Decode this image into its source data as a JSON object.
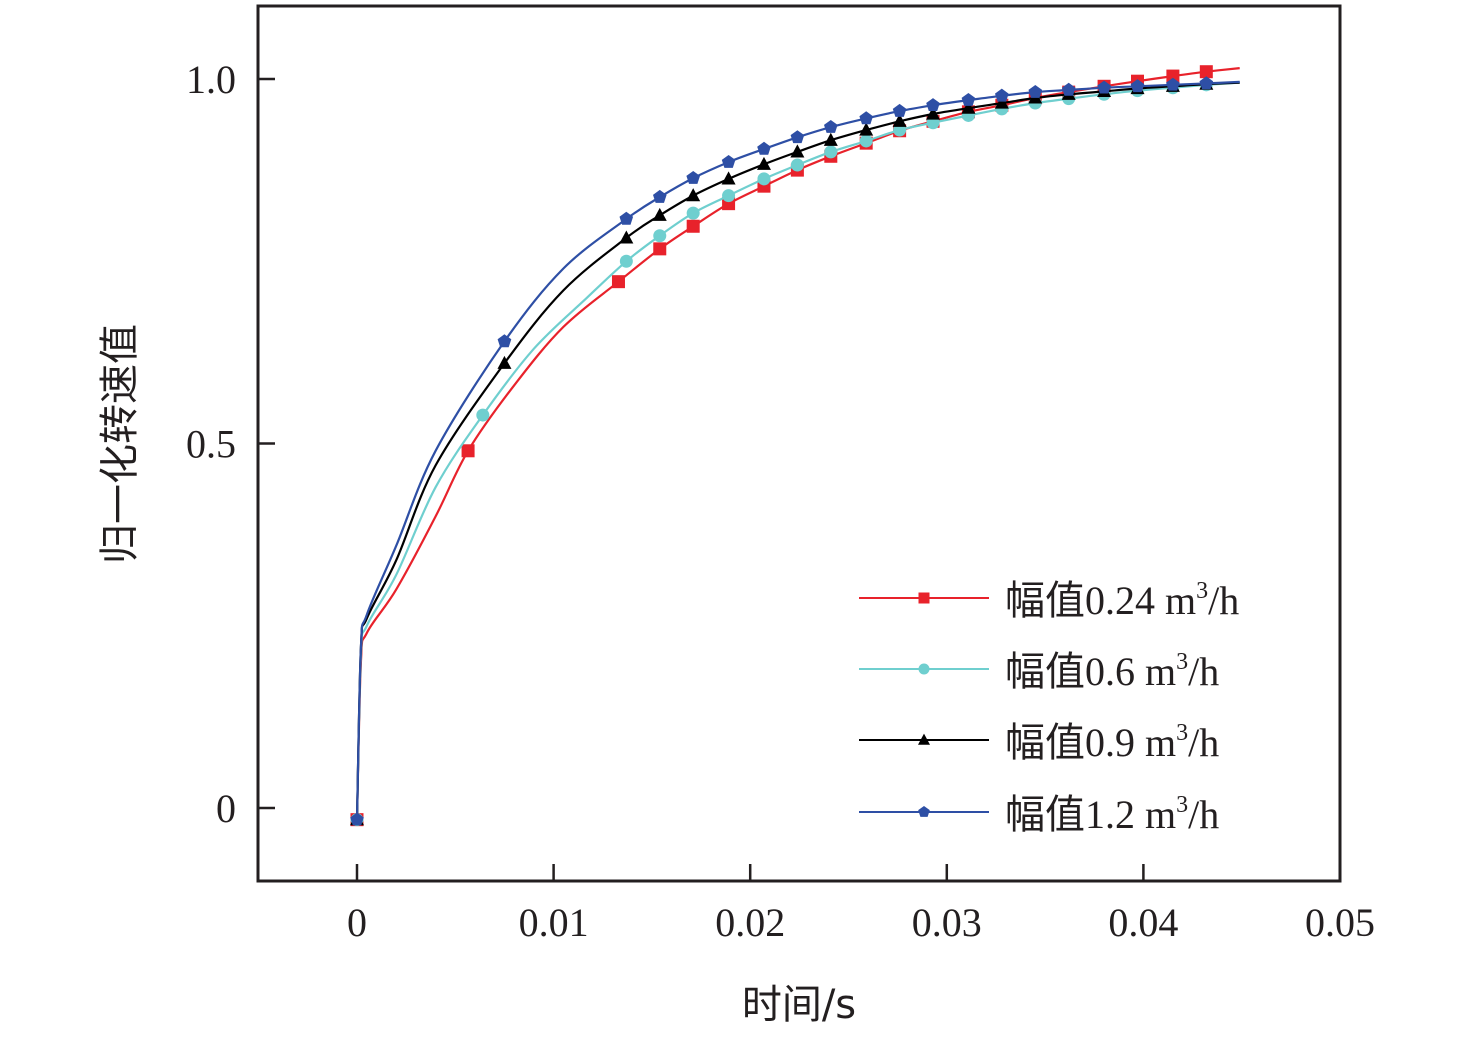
{
  "chart_data": {
    "type": "line",
    "title": "",
    "xlabel": "时间/s",
    "ylabel": "归一化转速值",
    "xlim": [
      -0.005,
      0.05
    ],
    "ylim": [
      -0.1,
      1.1
    ],
    "xticks": [
      0,
      0.01,
      0.02,
      0.03,
      0.04,
      0.05
    ],
    "xtick_labels": [
      "0",
      "0.01",
      "0.02",
      "0.03",
      "0.04",
      "0.05"
    ],
    "yticks": [
      0,
      0.5,
      1.0
    ],
    "ytick_labels": [
      "0",
      "0.5",
      "1.0"
    ],
    "grid": false,
    "legend_position": "bottom-right",
    "series": [
      {
        "name": "幅值0.24 m³/h",
        "label_prefix": "幅值0.24 m",
        "label_sup": "3",
        "label_suffix": "/h",
        "color": "#e8222b",
        "marker": "square",
        "curve": [
          [
            0,
            -0.016
          ],
          [
            0.0002,
            0.2
          ],
          [
            0.0005,
            0.24
          ],
          [
            0.002,
            0.3
          ],
          [
            0.004,
            0.4
          ],
          [
            0.00565,
            0.49
          ],
          [
            0.008,
            0.58
          ],
          [
            0.0105,
            0.66
          ],
          [
            0.0133,
            0.722
          ],
          [
            0.0154,
            0.767
          ],
          [
            0.0171,
            0.798
          ],
          [
            0.0189,
            0.829
          ],
          [
            0.0207,
            0.853
          ],
          [
            0.0224,
            0.875
          ],
          [
            0.0241,
            0.894
          ],
          [
            0.0259,
            0.912
          ],
          [
            0.0276,
            0.929
          ],
          [
            0.0293,
            0.942
          ],
          [
            0.0311,
            0.955
          ],
          [
            0.0328,
            0.964
          ],
          [
            0.0345,
            0.974
          ],
          [
            0.0362,
            0.982
          ],
          [
            0.038,
            0.99
          ],
          [
            0.0397,
            0.997
          ],
          [
            0.0415,
            1.004
          ],
          [
            0.0432,
            1.01
          ],
          [
            0.0449,
            1.015
          ]
        ],
        "markers": [
          [
            0,
            -0.016
          ],
          [
            0.00565,
            0.49
          ],
          [
            0.0133,
            0.722
          ],
          [
            0.0154,
            0.767
          ],
          [
            0.0171,
            0.798
          ],
          [
            0.0189,
            0.829
          ],
          [
            0.0207,
            0.853
          ],
          [
            0.0224,
            0.875
          ],
          [
            0.0241,
            0.894
          ],
          [
            0.0259,
            0.912
          ],
          [
            0.0276,
            0.929
          ],
          [
            0.0293,
            0.942
          ],
          [
            0.0311,
            0.955
          ],
          [
            0.0328,
            0.964
          ],
          [
            0.0345,
            0.974
          ],
          [
            0.0362,
            0.982
          ],
          [
            0.038,
            0.99
          ],
          [
            0.0397,
            0.997
          ],
          [
            0.0415,
            1.004
          ],
          [
            0.0432,
            1.01
          ]
        ]
      },
      {
        "name": "幅值0.6 m³/h",
        "label_prefix": "幅值0.6 m",
        "label_sup": "3",
        "label_suffix": "/h",
        "color": "#6fcfcf",
        "marker": "circle",
        "curve": [
          [
            0,
            -0.016
          ],
          [
            0.0002,
            0.21
          ],
          [
            0.0005,
            0.25
          ],
          [
            0.002,
            0.32
          ],
          [
            0.004,
            0.44
          ],
          [
            0.0064,
            0.539
          ],
          [
            0.009,
            0.63
          ],
          [
            0.0117,
            0.7
          ],
          [
            0.0137,
            0.75
          ],
          [
            0.0154,
            0.785
          ],
          [
            0.0171,
            0.816
          ],
          [
            0.0189,
            0.84
          ],
          [
            0.0207,
            0.863
          ],
          [
            0.0224,
            0.882
          ],
          [
            0.0241,
            0.9
          ],
          [
            0.0259,
            0.915
          ],
          [
            0.0276,
            0.93
          ],
          [
            0.0293,
            0.94
          ],
          [
            0.0311,
            0.95
          ],
          [
            0.0328,
            0.959
          ],
          [
            0.0345,
            0.967
          ],
          [
            0.0362,
            0.973
          ],
          [
            0.038,
            0.979
          ],
          [
            0.0397,
            0.984
          ],
          [
            0.0415,
            0.988
          ],
          [
            0.0432,
            0.992
          ],
          [
            0.0449,
            0.995
          ]
        ],
        "markers": [
          [
            0,
            -0.016
          ],
          [
            0.0064,
            0.539
          ],
          [
            0.0137,
            0.75
          ],
          [
            0.0154,
            0.785
          ],
          [
            0.0171,
            0.816
          ],
          [
            0.0189,
            0.84
          ],
          [
            0.0207,
            0.863
          ],
          [
            0.0224,
            0.882
          ],
          [
            0.0241,
            0.9
          ],
          [
            0.0259,
            0.915
          ],
          [
            0.0276,
            0.93
          ],
          [
            0.0293,
            0.94
          ],
          [
            0.0311,
            0.95
          ],
          [
            0.0328,
            0.959
          ],
          [
            0.0345,
            0.967
          ],
          [
            0.0362,
            0.973
          ],
          [
            0.038,
            0.979
          ],
          [
            0.0397,
            0.984
          ],
          [
            0.0415,
            0.988
          ],
          [
            0.0432,
            0.992
          ]
        ]
      },
      {
        "name": "幅值0.9 m³/h",
        "label_prefix": "幅值0.9 m",
        "label_sup": "3",
        "label_suffix": "/h",
        "color": "#000000",
        "marker": "triangle",
        "curve": [
          [
            0,
            -0.016
          ],
          [
            0.0002,
            0.22
          ],
          [
            0.0005,
            0.26
          ],
          [
            0.002,
            0.34
          ],
          [
            0.004,
            0.47
          ],
          [
            0.0075,
            0.61
          ],
          [
            0.0105,
            0.71
          ],
          [
            0.0137,
            0.782
          ],
          [
            0.0154,
            0.813
          ],
          [
            0.0171,
            0.84
          ],
          [
            0.0189,
            0.863
          ],
          [
            0.0207,
            0.883
          ],
          [
            0.0224,
            0.9
          ],
          [
            0.0241,
            0.916
          ],
          [
            0.0259,
            0.93
          ],
          [
            0.0276,
            0.942
          ],
          [
            0.0293,
            0.952
          ],
          [
            0.0311,
            0.96
          ],
          [
            0.0328,
            0.967
          ],
          [
            0.0345,
            0.974
          ],
          [
            0.0362,
            0.979
          ],
          [
            0.038,
            0.983
          ],
          [
            0.0397,
            0.987
          ],
          [
            0.0415,
            0.99
          ],
          [
            0.0432,
            0.993
          ],
          [
            0.0449,
            0.995
          ]
        ],
        "markers": [
          [
            0,
            -0.016
          ],
          [
            0.0075,
            0.61
          ],
          [
            0.0137,
            0.782
          ],
          [
            0.0154,
            0.813
          ],
          [
            0.0171,
            0.84
          ],
          [
            0.0189,
            0.863
          ],
          [
            0.0207,
            0.883
          ],
          [
            0.0224,
            0.9
          ],
          [
            0.0241,
            0.916
          ],
          [
            0.0259,
            0.93
          ],
          [
            0.0276,
            0.942
          ],
          [
            0.0293,
            0.952
          ],
          [
            0.0311,
            0.96
          ],
          [
            0.0328,
            0.967
          ],
          [
            0.0345,
            0.974
          ],
          [
            0.0362,
            0.979
          ],
          [
            0.038,
            0.983
          ],
          [
            0.0397,
            0.987
          ],
          [
            0.0415,
            0.99
          ],
          [
            0.0432,
            0.993
          ]
        ]
      },
      {
        "name": "幅值1.2 m³/h",
        "label_prefix": "幅值1.2 m",
        "label_sup": "3",
        "label_suffix": "/h",
        "color": "#2e4fa5",
        "marker": "pentagon",
        "curve": [
          [
            0,
            -0.016
          ],
          [
            0.0002,
            0.22
          ],
          [
            0.0005,
            0.265
          ],
          [
            0.002,
            0.36
          ],
          [
            0.004,
            0.49
          ],
          [
            0.0075,
            0.64
          ],
          [
            0.0105,
            0.74
          ],
          [
            0.0137,
            0.808
          ],
          [
            0.0154,
            0.838
          ],
          [
            0.0171,
            0.864
          ],
          [
            0.0189,
            0.886
          ],
          [
            0.0207,
            0.904
          ],
          [
            0.0224,
            0.92
          ],
          [
            0.0241,
            0.934
          ],
          [
            0.0259,
            0.946
          ],
          [
            0.0276,
            0.956
          ],
          [
            0.0293,
            0.964
          ],
          [
            0.0311,
            0.971
          ],
          [
            0.0328,
            0.977
          ],
          [
            0.0345,
            0.982
          ],
          [
            0.0362,
            0.985
          ],
          [
            0.038,
            0.988
          ],
          [
            0.0397,
            0.99
          ],
          [
            0.0415,
            0.992
          ],
          [
            0.0432,
            0.994
          ],
          [
            0.0449,
            0.996
          ]
        ],
        "markers": [
          [
            0,
            -0.016
          ],
          [
            0.0075,
            0.64
          ],
          [
            0.0137,
            0.808
          ],
          [
            0.0154,
            0.838
          ],
          [
            0.0171,
            0.864
          ],
          [
            0.0189,
            0.886
          ],
          [
            0.0207,
            0.904
          ],
          [
            0.0224,
            0.92
          ],
          [
            0.0241,
            0.934
          ],
          [
            0.0259,
            0.946
          ],
          [
            0.0276,
            0.956
          ],
          [
            0.0293,
            0.964
          ],
          [
            0.0311,
            0.971
          ],
          [
            0.0328,
            0.977
          ],
          [
            0.0345,
            0.982
          ],
          [
            0.0362,
            0.985
          ],
          [
            0.038,
            0.988
          ],
          [
            0.0397,
            0.99
          ],
          [
            0.0415,
            0.992
          ],
          [
            0.0432,
            0.994
          ]
        ]
      }
    ]
  }
}
